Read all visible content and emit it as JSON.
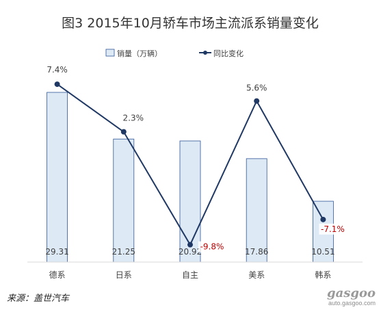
{
  "chart_data": {
    "type": "bar",
    "title": "图3  2015年10月轿车市场主流派系销量变化",
    "categories": [
      "德系",
      "日系",
      "自主",
      "美系",
      "韩系"
    ],
    "series": [
      {
        "name": "销量（万辆）",
        "type": "bar",
        "values": [
          29.31,
          21.25,
          20.92,
          17.86,
          10.51
        ],
        "labels": [
          "29.31",
          "21.25",
          "20.92",
          "17.86",
          "10.51"
        ]
      },
      {
        "name": "同比变化",
        "type": "line",
        "values": [
          7.4,
          2.3,
          -9.8,
          5.6,
          -7.1
        ],
        "labels": [
          "7.4%",
          "2.3%",
          "-9.8%",
          "5.6%",
          "-7.1%"
        ]
      }
    ],
    "legend_position": "top",
    "colors": {
      "bar_fill": "#dde9f5",
      "bar_stroke": "#2f5597",
      "line": "#1f3864",
      "negative_label": "#c00000",
      "positive_label": "#404040"
    }
  },
  "source": "来源：盖世汽车",
  "watermark": {
    "logo": "gasgoo",
    "url": "auto.gasgoo.com"
  }
}
